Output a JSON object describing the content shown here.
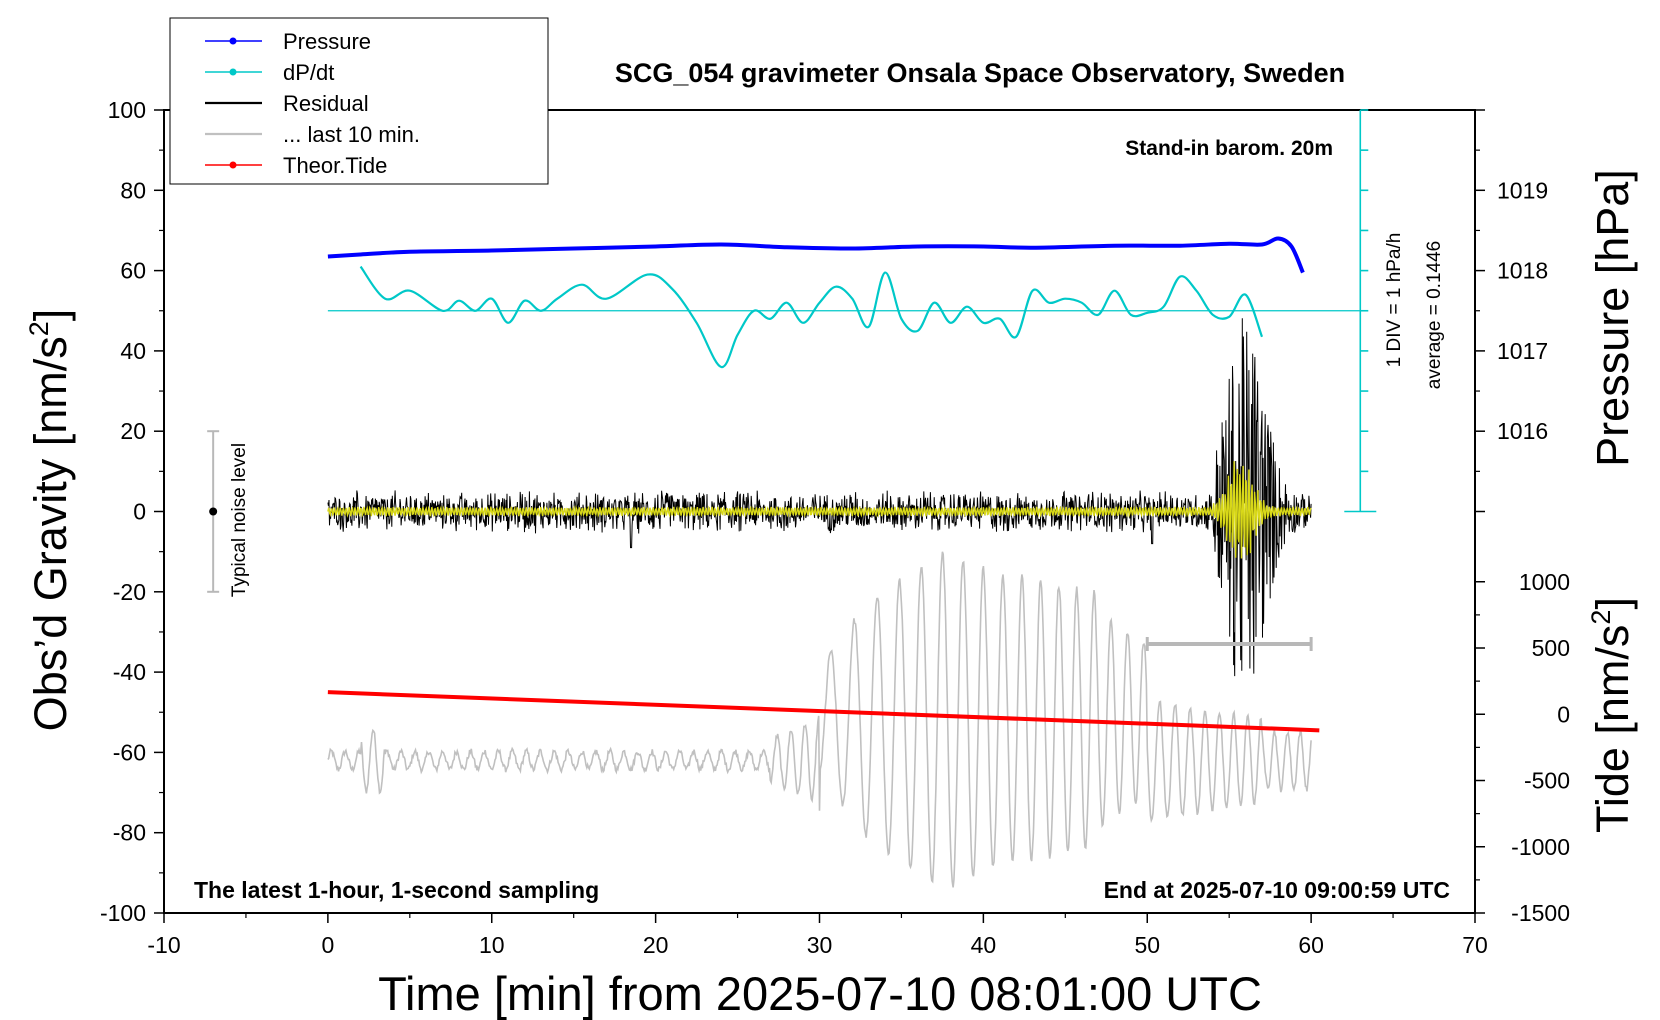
{
  "chart_data": {
    "type": "line",
    "title": "SCG_054 gravimeter Onsala Space Observatory, Sweden",
    "xlabel": "Time [min] from 2025-07-10 08:01:00 UTC",
    "ylabel_left": "Obs’d Gravity [nm/s",
    "ylabel_left_sup": "2",
    "ylabel_left_end": "]",
    "ylabel_right_top": "Pressure [hPa]",
    "ylabel_right_bottom": "Tide [nm/s",
    "ylabel_right_bottom_sup": "2",
    "ylabel_right_bottom_end": "]",
    "xlim": [
      -10,
      70
    ],
    "ylim_left": [
      -100,
      100
    ],
    "xticks": [
      -10,
      0,
      10,
      20,
      30,
      40,
      50,
      60,
      70
    ],
    "yticks_left": [
      -100,
      -80,
      -60,
      -40,
      -20,
      0,
      20,
      40,
      60,
      80,
      100
    ],
    "pressure_ticks": [
      1016,
      1017,
      1018,
      1019
    ],
    "pressure_axis_map": {
      "hPa_at_gravity_0": 1015,
      "gravity_per_hPa": 20
    },
    "tide_ticks": [
      -1500,
      -1000,
      -500,
      0,
      500,
      1000
    ],
    "tide_axis_map": {
      "tide_at_gravity_minus100": -1500,
      "gravity_per_500": 16.5
    },
    "legend": [
      {
        "label": "Pressure",
        "color": "#0000ff",
        "marker": true
      },
      {
        "label": "dP/dt",
        "color": "#00c8c8",
        "marker": true
      },
      {
        "label": "Residual",
        "color": "#000000",
        "marker": false
      },
      {
        "label": "... last 10 min.",
        "color": "#c0c0c0",
        "marker": false
      },
      {
        "label": "Theor.Tide",
        "color": "#ff0000",
        "marker": true
      }
    ],
    "annotations": {
      "barometer": "Stand-in barom. 20m",
      "div_label": "1 DIV = 1 hPa/h",
      "average_label": "average = 0.1446",
      "noise_label": "Typical noise level",
      "bottom_left": "The latest 1-hour, 1-second sampling",
      "bottom_right": "End at 2025-07-10 09:00:59 UTC"
    },
    "series": [
      {
        "name": "Pressure",
        "color": "#0000ff",
        "x": [
          0,
          2,
          5,
          10,
          15,
          20,
          24,
          28,
          32,
          36,
          40,
          43,
          48,
          52,
          55,
          57,
          58,
          58.8,
          59.5
        ],
        "y": [
          63.5,
          64,
          64.7,
          65,
          65.5,
          66,
          66.5,
          65.8,
          65.5,
          66,
          66,
          65.7,
          66.2,
          66.2,
          66.7,
          66.5,
          68,
          66,
          59.5
        ]
      },
      {
        "name": "dP/dt",
        "color": "#00c8c8",
        "x": [
          2,
          3.5,
          5,
          7,
          8,
          9,
          10,
          11,
          12,
          13,
          14,
          15.5,
          17,
          19.5,
          21,
          22.5,
          24,
          25,
          26,
          27,
          28,
          29,
          30,
          31,
          32,
          33,
          34,
          35,
          36,
          37,
          38,
          39,
          40,
          41,
          42,
          43,
          44,
          45,
          46,
          47,
          48,
          49,
          50,
          51,
          52,
          53,
          54,
          55,
          56,
          57
        ],
        "y": [
          61,
          53,
          55,
          50,
          52.5,
          50,
          53,
          47,
          52.5,
          50,
          53,
          56.5,
          53,
          59,
          55.5,
          47,
          36,
          44,
          50,
          48,
          52,
          47,
          52,
          56,
          53,
          46,
          59.5,
          48,
          45,
          52,
          47,
          51,
          47,
          48,
          43.5,
          55,
          52,
          53,
          52,
          49,
          55,
          49,
          49.5,
          51,
          58.5,
          55,
          49,
          48.5,
          54,
          43.5
        ]
      },
      {
        "name": "Residual",
        "color": "#000000",
        "x_range": [
          0,
          60
        ],
        "amplitude_before_55": 4,
        "peak_amplitude": 45,
        "peak_time": 56
      },
      {
        "name": "Residual (filtered)",
        "color": "#d8d818",
        "x_range": [
          0,
          60
        ],
        "peak_amplitude": 14
      },
      {
        "name": "... last 10 min.",
        "color": "#c0c0c0",
        "x_range": [
          0,
          60
        ],
        "baseline": -62,
        "peak_amplitude": 48
      },
      {
        "name": "Theor.Tide",
        "color": "#ff0000",
        "x": [
          0,
          60.5
        ],
        "y": [
          -45,
          -54.5
        ]
      }
    ],
    "dpdt_baseline": 50,
    "dpdt_div_bar": {
      "x": 63,
      "y_from": 0,
      "y_to": 100
    },
    "noise_bar": {
      "x": -7,
      "y_from": -20,
      "y_to": 20
    },
    "gray_scale_bar": {
      "x_from": 50,
      "x_to": 60,
      "y": -33
    }
  }
}
